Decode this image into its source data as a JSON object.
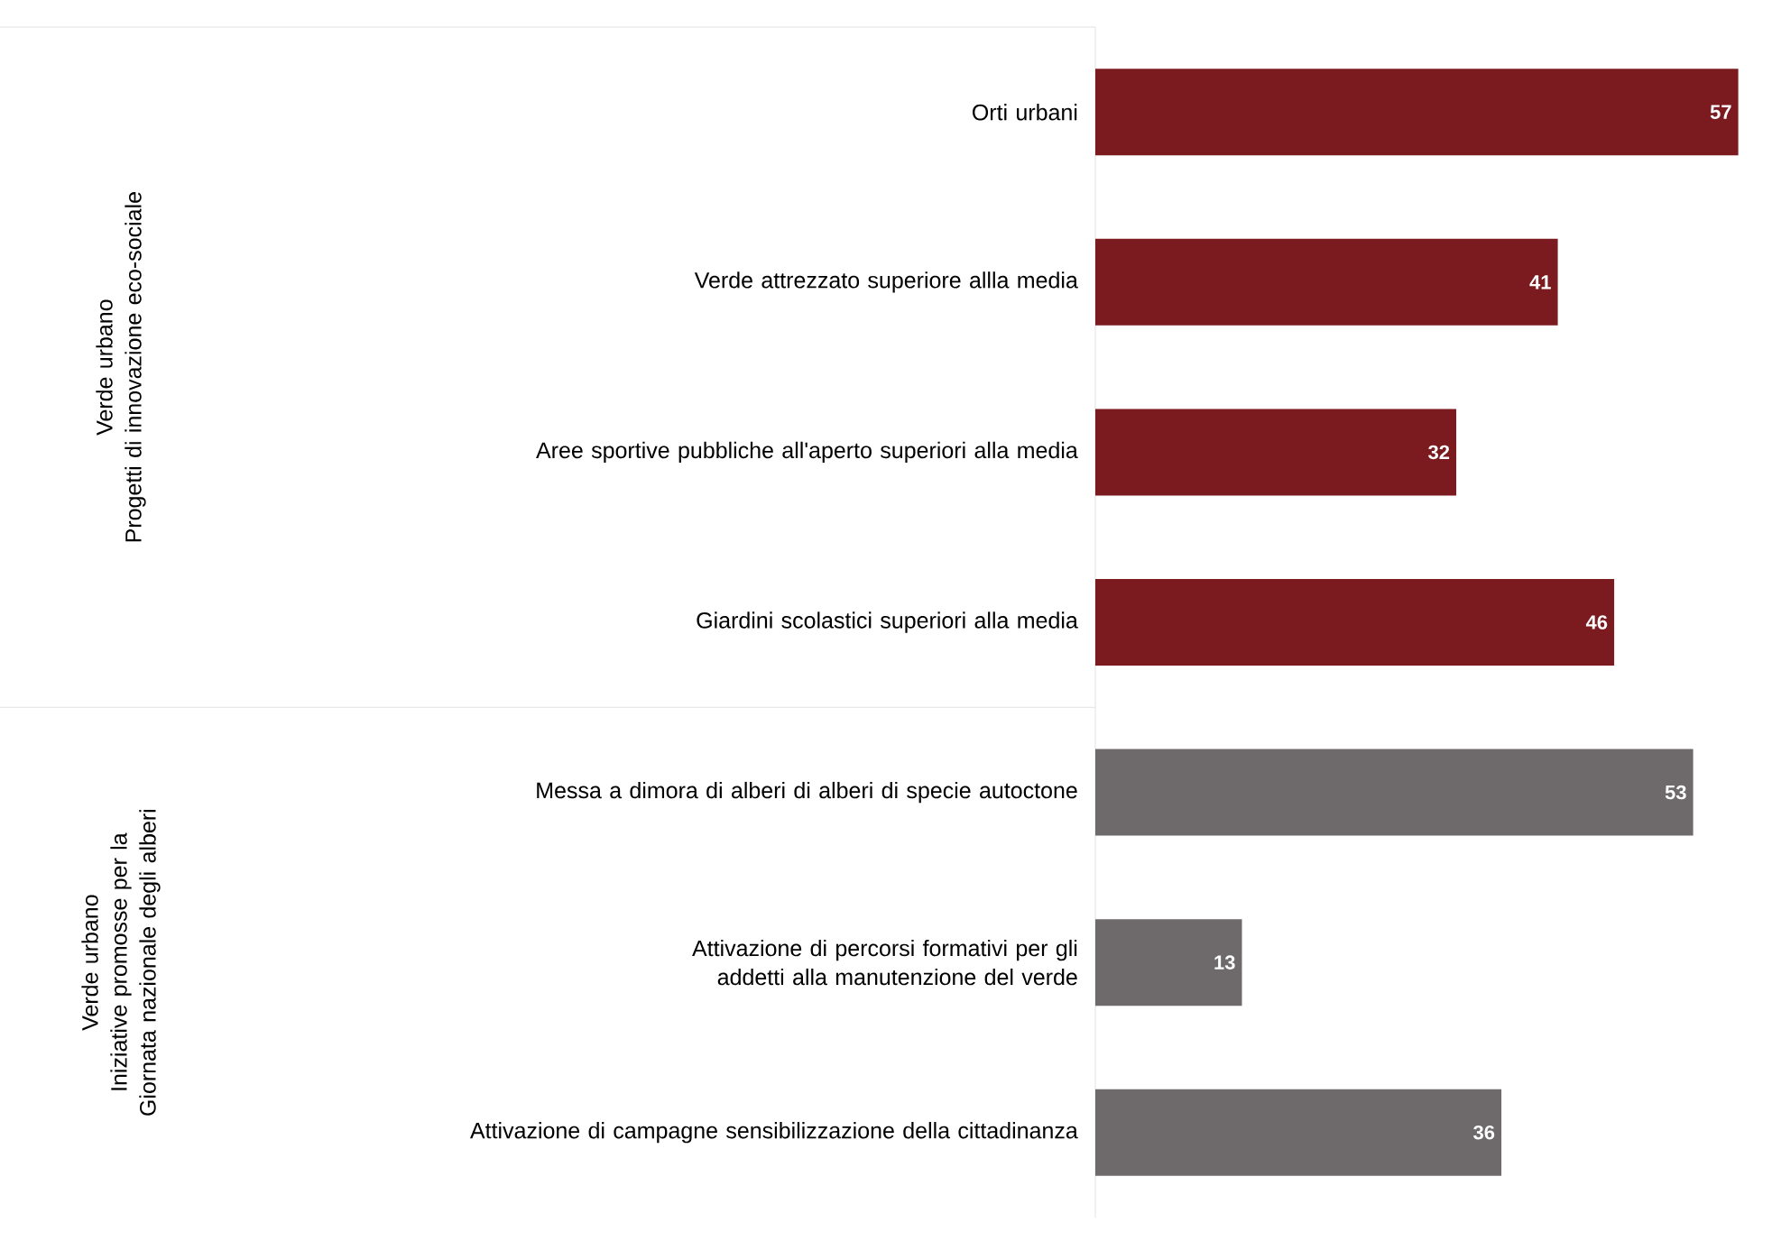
{
  "chart_data": {
    "type": "bar",
    "orientation": "horizontal",
    "data_labels": true,
    "categories": [
      "Orti urbani",
      "Verde attrezzato superiore allla media",
      "Aree sportive pubbliche all'aperto superiori alla media",
      "Giardini scolastici superiori alla media",
      "Messa a dimora di alberi di alberi di specie autoctone",
      "Attivazione di percorsi formativi per gli addetti alla manutenzione del verde",
      "Attivazione di campagne sensibilizzazione della cittadinanza"
    ],
    "values": [
      57,
      41,
      32,
      46,
      53,
      13,
      36
    ],
    "colors": [
      "#7b1a1f",
      "#7b1a1f",
      "#7b1a1f",
      "#7b1a1f",
      "#6e6a6c",
      "#6e6a6c",
      "#6e6a6c"
    ],
    "annotations": [
      "Verde urbano",
      "Progetti di innovazione eco-sociale",
      "Verde urbano",
      "Iniziative promosse per la Giornata nazionale degli alberi"
    ]
  }
}
